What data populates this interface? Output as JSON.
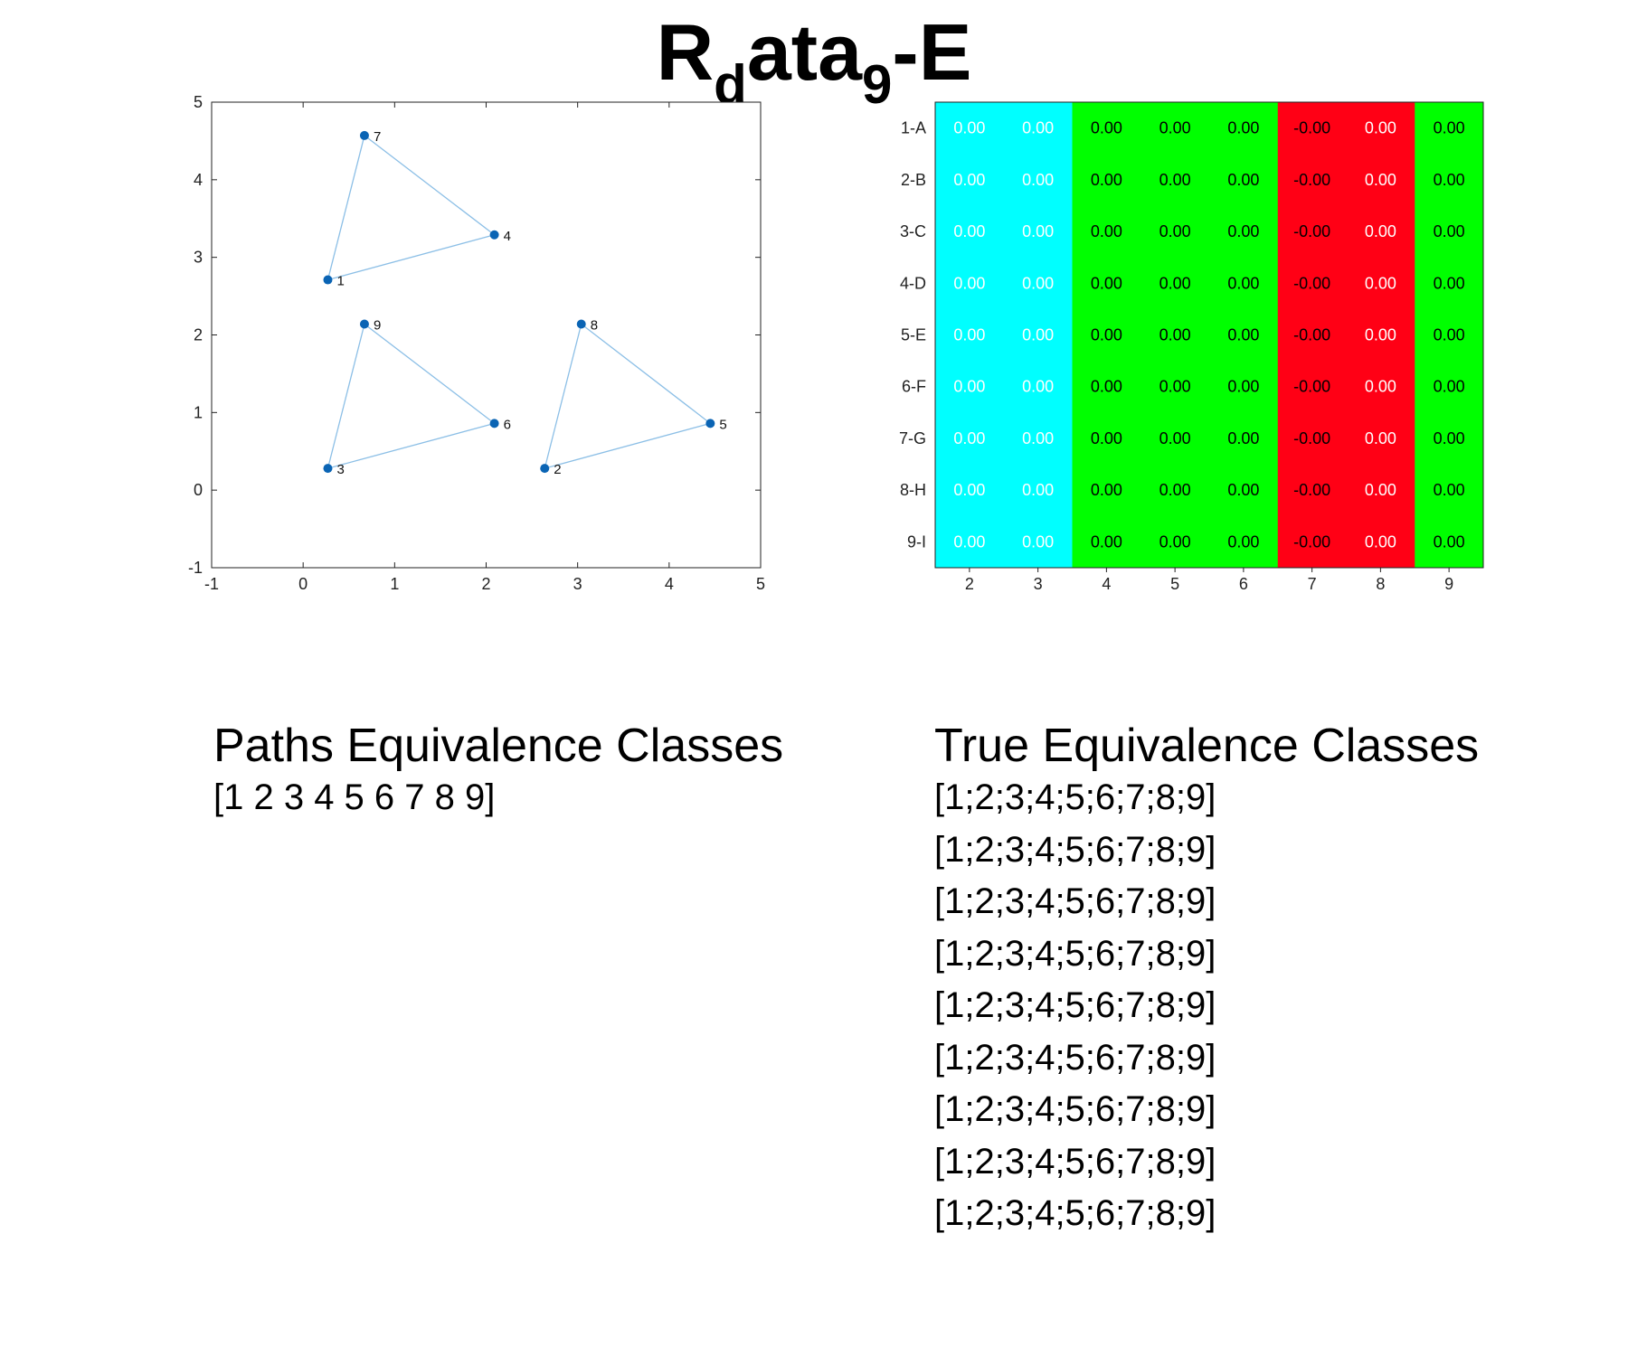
{
  "title": {
    "base": "R",
    "sub1": "d",
    "middle": "ata",
    "sub2": "9",
    "suffix": "-E"
  },
  "chart_data": [
    {
      "type": "scatter",
      "xlim": [
        -1,
        5
      ],
      "ylim": [
        -1,
        5
      ],
      "xticks": [
        "-1",
        "0",
        "1",
        "2",
        "3",
        "4",
        "5"
      ],
      "yticks": [
        "-1",
        "0",
        "1",
        "2",
        "3",
        "4",
        "5"
      ],
      "grid": false,
      "point_color": "#0a64b4",
      "edge_color": "#8cbfe6",
      "points": [
        {
          "label": "1",
          "x": 0.27,
          "y": 2.71
        },
        {
          "label": "2",
          "x": 2.64,
          "y": 0.28
        },
        {
          "label": "3",
          "x": 0.27,
          "y": 0.28
        },
        {
          "label": "4",
          "x": 2.09,
          "y": 3.29
        },
        {
          "label": "5",
          "x": 4.45,
          "y": 0.86
        },
        {
          "label": "6",
          "x": 2.09,
          "y": 0.86
        },
        {
          "label": "7",
          "x": 0.67,
          "y": 4.57
        },
        {
          "label": "8",
          "x": 3.04,
          "y": 2.14
        },
        {
          "label": "9",
          "x": 0.67,
          "y": 2.14
        }
      ],
      "edges": [
        [
          "1",
          "7"
        ],
        [
          "7",
          "4"
        ],
        [
          "4",
          "1"
        ],
        [
          "3",
          "9"
        ],
        [
          "9",
          "6"
        ],
        [
          "6",
          "3"
        ],
        [
          "2",
          "8"
        ],
        [
          "8",
          "5"
        ],
        [
          "5",
          "2"
        ]
      ]
    },
    {
      "type": "heatmap",
      "rows": [
        "1-A",
        "2-B",
        "3-C",
        "4-D",
        "5-E",
        "6-F",
        "7-G",
        "8-H",
        "9-I"
      ],
      "columns": [
        "2",
        "3",
        "4",
        "5",
        "6",
        "7",
        "8",
        "9"
      ],
      "column_colors": [
        "#00ffff",
        "#00ffff",
        "#00ff00",
        "#00ff00",
        "#00ff00",
        "#ff0015",
        "#ff0015",
        "#00ff00"
      ],
      "column_text_colors": [
        "#ffffff",
        "#ffffff",
        "#000000",
        "#000000",
        "#000000",
        "#000000",
        "#ffffff",
        "#000000"
      ],
      "values": [
        [
          "0.00",
          "0.00",
          "0.00",
          "0.00",
          "0.00",
          "-0.00",
          "0.00",
          "0.00"
        ],
        [
          "0.00",
          "0.00",
          "0.00",
          "0.00",
          "0.00",
          "-0.00",
          "0.00",
          "0.00"
        ],
        [
          "0.00",
          "0.00",
          "0.00",
          "0.00",
          "0.00",
          "-0.00",
          "0.00",
          "0.00"
        ],
        [
          "0.00",
          "0.00",
          "0.00",
          "0.00",
          "0.00",
          "-0.00",
          "0.00",
          "0.00"
        ],
        [
          "0.00",
          "0.00",
          "0.00",
          "0.00",
          "0.00",
          "-0.00",
          "0.00",
          "0.00"
        ],
        [
          "0.00",
          "0.00",
          "0.00",
          "0.00",
          "0.00",
          "-0.00",
          "0.00",
          "0.00"
        ],
        [
          "0.00",
          "0.00",
          "0.00",
          "0.00",
          "0.00",
          "-0.00",
          "0.00",
          "0.00"
        ],
        [
          "0.00",
          "0.00",
          "0.00",
          "0.00",
          "0.00",
          "-0.00",
          "0.00",
          "0.00"
        ],
        [
          "0.00",
          "0.00",
          "0.00",
          "0.00",
          "0.00",
          "-0.00",
          "0.00",
          "0.00"
        ]
      ]
    }
  ],
  "paths_classes": {
    "heading": "Paths Equivalence Classes",
    "lines": [
      "[1 2 3 4 5 6 7 8 9]"
    ]
  },
  "true_classes": {
    "heading": "True Equivalence Classes",
    "lines": [
      "[1;2;3;4;5;6;7;8;9]",
      "[1;2;3;4;5;6;7;8;9]",
      "[1;2;3;4;5;6;7;8;9]",
      "[1;2;3;4;5;6;7;8;9]",
      "[1;2;3;4;5;6;7;8;9]",
      "[1;2;3;4;5;6;7;8;9]",
      "[1;2;3;4;5;6;7;8;9]",
      "[1;2;3;4;5;6;7;8;9]",
      "[1;2;3;4;5;6;7;8;9]"
    ]
  }
}
